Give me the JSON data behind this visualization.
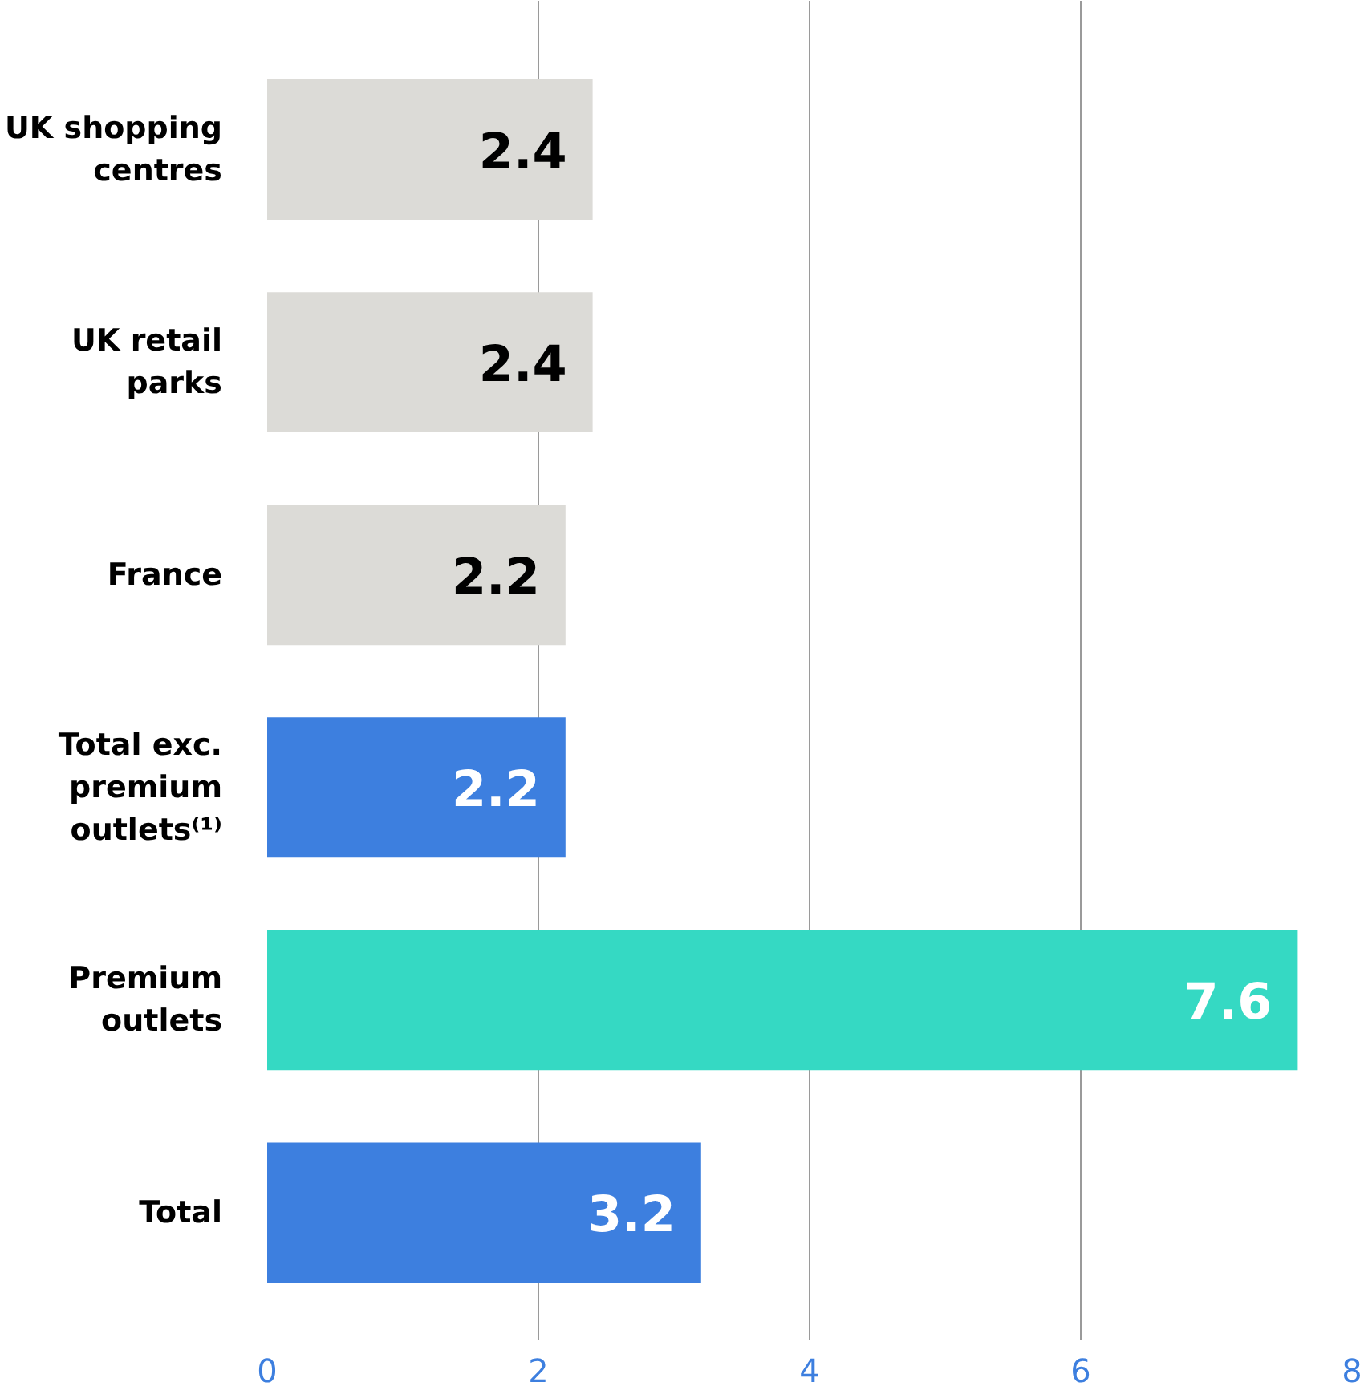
{
  "chart_data": {
    "type": "bar",
    "orientation": "horizontal",
    "categories": [
      "UK shopping centres",
      "UK retail parks",
      "France",
      "Total exc. premium outlets⁽¹⁾",
      "Premium outlets",
      "Total"
    ],
    "values": [
      2.4,
      2.4,
      2.2,
      2.2,
      7.6,
      3.2
    ],
    "colors": [
      "#dcdbd7",
      "#dcdbd7",
      "#dcdbd7",
      "#3d7fdf",
      "#35d9c3",
      "#3d7fdf"
    ],
    "xlim": [
      0,
      8
    ],
    "xticks": [
      0,
      2,
      4,
      6,
      8
    ],
    "grid": "x",
    "data_labels": true
  }
}
